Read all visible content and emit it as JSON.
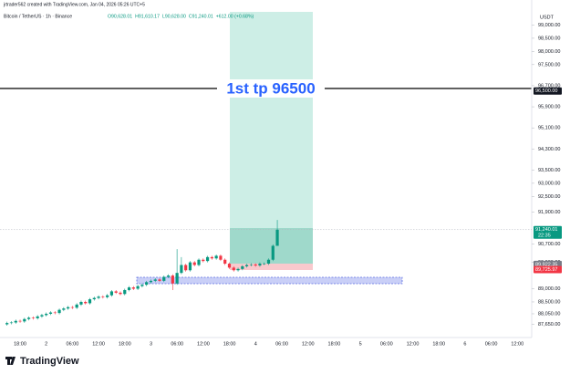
{
  "header": {
    "credit": "jrtrader562 created with TradingView.com, Jan 04, 2026 05:26 UTC+5",
    "symbol": "Bitcoin / TetherUS · 1h · Binance",
    "ohlc": [
      "O90,628.01",
      "H91,610.17",
      "L90,628.00",
      "C91,240.01",
      "+612.00 (+0.68%)"
    ]
  },
  "chart_data": {
    "type": "candlestick",
    "currency": "USDT",
    "annotation": "1st tp 96500",
    "up_color": "#089981",
    "down_color": "#f23645",
    "ylim": [
      87150,
      99950
    ],
    "open": [
      87650,
      87700,
      87720,
      87780,
      87760,
      87850,
      87900,
      87880,
      87950,
      88000,
      88050,
      88100,
      88080,
      88200,
      88250,
      88300,
      88280,
      88400,
      88500,
      88450,
      88600,
      88650,
      88700,
      88680,
      88750,
      88900,
      88850,
      88800,
      88950,
      89050,
      89000,
      89100,
      89150,
      89250,
      89300,
      89350,
      89300,
      89450,
      89500,
      89200,
      89600,
      89900,
      89700,
      90000,
      89900,
      90100,
      90050,
      90200,
      90150,
      90250,
      90100,
      89950,
      89800,
      89700,
      89750,
      89850,
      89900,
      89920,
      89880,
      89950,
      89950,
      90100,
      90628.01
    ],
    "high": [
      87750,
      87770,
      87830,
      87830,
      87900,
      87950,
      87950,
      88000,
      88050,
      88100,
      88150,
      88150,
      88250,
      88300,
      88350,
      88350,
      88450,
      88550,
      88550,
      88650,
      88700,
      88750,
      88750,
      88800,
      88950,
      88950,
      88900,
      89000,
      89100,
      89100,
      89150,
      89200,
      89300,
      89350,
      89400,
      89400,
      89500,
      89550,
      89550,
      90500,
      90200,
      89950,
      90050,
      90050,
      90150,
      90150,
      90250,
      90250,
      90300,
      90300,
      90150,
      90000,
      89850,
      89800,
      89900,
      89950,
      89970,
      89970,
      90000,
      90000,
      90150,
      90680,
      91610.17
    ],
    "low": [
      87600,
      87650,
      87670,
      87710,
      87710,
      87800,
      87830,
      87830,
      87900,
      87950,
      88000,
      88030,
      88030,
      88150,
      88200,
      88230,
      88230,
      88350,
      88400,
      88400,
      88550,
      88600,
      88630,
      88630,
      88700,
      88800,
      88750,
      88750,
      88900,
      88950,
      88950,
      89050,
      89100,
      89200,
      89250,
      89250,
      89250,
      89400,
      88950,
      89150,
      89550,
      89650,
      89650,
      89850,
      89850,
      90000,
      90000,
      90100,
      90100,
      90050,
      89900,
      89750,
      89650,
      89650,
      89700,
      89800,
      89850,
      89830,
      89830,
      89900,
      89900,
      90050,
      90628
    ],
    "close": [
      87700,
      87720,
      87780,
      87760,
      87850,
      87900,
      87880,
      87950,
      88000,
      88050,
      88100,
      88080,
      88200,
      88250,
      88300,
      88280,
      88400,
      88500,
      88450,
      88600,
      88650,
      88700,
      88680,
      88750,
      88900,
      88850,
      88800,
      88950,
      89050,
      89000,
      89100,
      89150,
      89250,
      89300,
      89350,
      89300,
      89450,
      89500,
      89200,
      89600,
      89900,
      89700,
      90000,
      89900,
      90100,
      90050,
      90200,
      90150,
      90250,
      90100,
      89950,
      89800,
      89700,
      89750,
      89850,
      89900,
      89920,
      89880,
      89950,
      89950,
      90100,
      90628.01,
      91240.01
    ],
    "yticks": [
      {
        "value": 99000,
        "label": "99,000.00"
      },
      {
        "value": 98500,
        "label": "98,500.00"
      },
      {
        "value": 98000,
        "label": "98,000.00"
      },
      {
        "value": 97500,
        "label": "97,500.00"
      },
      {
        "value": 96700,
        "label": "96,700.00"
      },
      {
        "value": 95900,
        "label": "95,900.00"
      },
      {
        "value": 95100,
        "label": "95,100.00"
      },
      {
        "value": 94300,
        "label": "94,300.00"
      },
      {
        "value": 93500,
        "label": "93,500.00"
      },
      {
        "value": 93000,
        "label": "93,000.00"
      },
      {
        "value": 92500,
        "label": "92,500.00"
      },
      {
        "value": 91900,
        "label": "91,900.00"
      },
      {
        "value": 90700,
        "label": "90,700.00"
      },
      {
        "value": 90000,
        "label": "90,000.00"
      },
      {
        "value": 89000,
        "label": "89,000.00"
      },
      {
        "value": 88500,
        "label": "88,500.00"
      },
      {
        "value": 88050,
        "label": "88,050.00"
      },
      {
        "value": 87650,
        "label": "87,650.00"
      }
    ],
    "price_labels": [
      {
        "value": 96500,
        "label": "96,500.00",
        "color": "#131722"
      },
      {
        "value": 91240.01,
        "label": "91,240.01",
        "color": "#089981"
      },
      {
        "value": 89922.35,
        "label": "89,922.35",
        "color": "#787b86"
      },
      {
        "value": 89725.97,
        "label": "89,725.97",
        "color": "#f23645"
      }
    ],
    "countdown": "22:35",
    "xticks": [
      "18:00",
      "2",
      "06:00",
      "12:00",
      "18:00",
      "3",
      "06:00",
      "12:00",
      "18:00",
      "4",
      "06:00",
      "12:00",
      "18:00",
      "5",
      "06:00",
      "12:00",
      "18:00",
      "6",
      "06:00",
      "12:00"
    ]
  },
  "footer": {
    "brand": "TradingView"
  }
}
